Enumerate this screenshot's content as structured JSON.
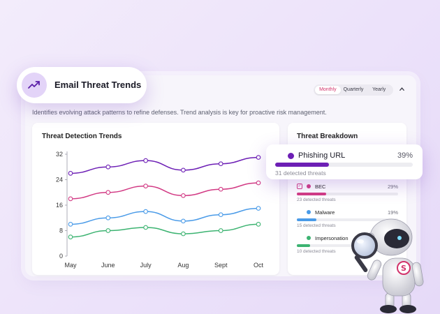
{
  "header": {
    "title": "Email Threat Trends",
    "icon": "trend-up-icon",
    "description": "Identifies evolving attack patterns to refine defenses. Trend analysis is key for proactive risk management.",
    "period_tabs": [
      {
        "label": "Monthly",
        "active": true
      },
      {
        "label": "Quarterly",
        "active": false
      },
      {
        "label": "Yearly",
        "active": false
      }
    ],
    "collapse_icon": "chevron-up-icon",
    "accent_color": "#d2336b"
  },
  "chart": {
    "title": "Threat Detection Trends"
  },
  "chart_data": {
    "type": "line",
    "x": [
      "May",
      "June",
      "July",
      "Aug",
      "Sept",
      "Oct"
    ],
    "y_ticks": [
      0,
      8,
      16,
      24,
      32
    ],
    "ylim": [
      0,
      32
    ],
    "grid": false,
    "series": [
      {
        "color": "#6d1fb5",
        "values": [
          26,
          28,
          30,
          27,
          29,
          31
        ]
      },
      {
        "color": "#d23a84",
        "values": [
          18,
          20,
          22,
          19,
          21,
          23
        ]
      },
      {
        "color": "#4a9be8",
        "values": [
          10,
          12,
          14,
          11,
          13,
          15
        ]
      },
      {
        "color": "#3cb371",
        "values": [
          6,
          8,
          9,
          7,
          8,
          10
        ]
      }
    ]
  },
  "breakdown": {
    "title": "Threat Breakdown",
    "highlight": {
      "name": "Phishing URL",
      "percent": "39%",
      "fraction": 0.39,
      "detected": "31 detected threats",
      "color": "#6d1fb5"
    },
    "items": [
      {
        "name": "BEC",
        "percent": "29%",
        "fraction": 0.29,
        "detected": "23 detected threats",
        "color": "#d23a84",
        "checked": true
      },
      {
        "name": "Malware",
        "percent": "19%",
        "fraction": 0.19,
        "detected": "15 detected threats",
        "color": "#4a9be8",
        "checked": false
      },
      {
        "name": "Impersonation",
        "percent": "",
        "fraction": 0.13,
        "detected": "10 detected threats",
        "color": "#3cb371",
        "checked": false
      }
    ]
  },
  "mascot": {
    "icon": "robot-detective-icon",
    "badge_letter": "S",
    "badge_color": "#d2336b"
  }
}
